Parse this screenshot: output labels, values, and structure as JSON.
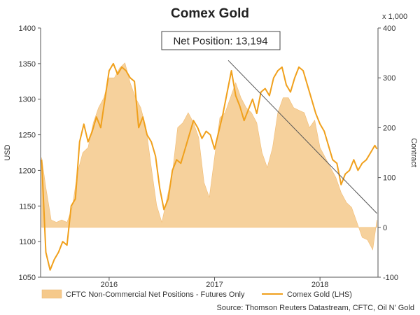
{
  "chart_data": {
    "type": "line",
    "title": "Comex Gold",
    "left_axis": {
      "label": "USD",
      "range": [
        1050,
        1400
      ],
      "ticks": [
        "1050",
        "1100",
        "1150",
        "1200",
        "1250",
        "1300",
        "1350",
        "1400"
      ]
    },
    "right_axis": {
      "label": "Contract",
      "unit_note": "x 1,000",
      "range": [
        -100,
        400
      ],
      "ticks": [
        "-100",
        "0",
        "100",
        "200",
        "300",
        "400"
      ]
    },
    "x_axis": {
      "range": [
        2015.35,
        2018.55
      ],
      "ticks": [
        {
          "label": "2016",
          "x": 2016.0
        },
        {
          "label": "2017",
          "x": 2017.0
        },
        {
          "label": "2018",
          "x": 2018.0
        }
      ]
    },
    "grid": false,
    "legend_position": "bottom",
    "annotation": {
      "text": "Net Position: 13,194",
      "line_from": [
        2017.13,
        335
      ],
      "line_to": [
        2018.54,
        28
      ]
    },
    "source": "Source: Thomson Reuters Datastream, CFTC, Oil N' Gold",
    "series": [
      {
        "name": "CFTC Non-Commercial Net Positions - Futures Only",
        "kind": "area",
        "axis": "right",
        "color": "#f5c98b",
        "x": [
          2015.36,
          2015.4,
          2015.45,
          2015.5,
          2015.55,
          2015.6,
          2015.65,
          2015.7,
          2015.75,
          2015.8,
          2015.85,
          2015.9,
          2015.95,
          2016.0,
          2016.05,
          2016.1,
          2016.15,
          2016.2,
          2016.25,
          2016.3,
          2016.35,
          2016.4,
          2016.45,
          2016.5,
          2016.55,
          2016.6,
          2016.65,
          2016.7,
          2016.75,
          2016.8,
          2016.85,
          2016.9,
          2016.95,
          2017.0,
          2017.05,
          2017.1,
          2017.15,
          2017.2,
          2017.25,
          2017.3,
          2017.35,
          2017.4,
          2017.45,
          2017.5,
          2017.55,
          2017.6,
          2017.65,
          2017.7,
          2017.75,
          2017.8,
          2017.85,
          2017.9,
          2017.95,
          2018.0,
          2018.05,
          2018.1,
          2018.15,
          2018.2,
          2018.25,
          2018.3,
          2018.35,
          2018.4,
          2018.45,
          2018.5,
          2018.54
        ],
        "values": [
          140,
          80,
          15,
          10,
          15,
          10,
          40,
          110,
          150,
          160,
          210,
          240,
          260,
          300,
          300,
          320,
          330,
          290,
          260,
          240,
          200,
          120,
          45,
          10,
          60,
          110,
          200,
          210,
          230,
          210,
          180,
          90,
          60,
          140,
          220,
          230,
          260,
          290,
          260,
          240,
          230,
          210,
          150,
          120,
          160,
          230,
          260,
          260,
          240,
          235,
          230,
          200,
          215,
          160,
          140,
          120,
          100,
          70,
          50,
          40,
          10,
          -20,
          -25,
          -45,
          15
        ],
        "values_unit": "thousand contracts"
      },
      {
        "name": "Comex Gold (LHS)",
        "kind": "line",
        "axis": "left",
        "color": "#f0a01c",
        "x": [
          2015.36,
          2015.4,
          2015.44,
          2015.48,
          2015.52,
          2015.56,
          2015.6,
          2015.64,
          2015.68,
          2015.72,
          2015.76,
          2015.8,
          2015.84,
          2015.88,
          2015.92,
          2015.96,
          2016.0,
          2016.04,
          2016.08,
          2016.12,
          2016.16,
          2016.2,
          2016.24,
          2016.28,
          2016.32,
          2016.36,
          2016.4,
          2016.44,
          2016.48,
          2016.52,
          2016.56,
          2016.6,
          2016.64,
          2016.68,
          2016.72,
          2016.76,
          2016.8,
          2016.84,
          2016.88,
          2016.92,
          2016.96,
          2017.0,
          2017.04,
          2017.08,
          2017.12,
          2017.16,
          2017.2,
          2017.24,
          2017.28,
          2017.32,
          2017.36,
          2017.4,
          2017.44,
          2017.48,
          2017.52,
          2017.56,
          2017.6,
          2017.64,
          2017.68,
          2017.72,
          2017.76,
          2017.8,
          2017.84,
          2017.88,
          2017.92,
          2017.96,
          2018.0,
          2018.04,
          2018.08,
          2018.12,
          2018.16,
          2018.2,
          2018.24,
          2018.28,
          2018.32,
          2018.36,
          2018.4,
          2018.44,
          2018.48,
          2018.52,
          2018.54
        ],
        "values": [
          1215,
          1085,
          1060,
          1075,
          1085,
          1100,
          1095,
          1150,
          1160,
          1240,
          1265,
          1240,
          1255,
          1275,
          1260,
          1300,
          1340,
          1350,
          1335,
          1345,
          1340,
          1330,
          1325,
          1260,
          1275,
          1250,
          1240,
          1220,
          1175,
          1145,
          1160,
          1200,
          1215,
          1210,
          1230,
          1250,
          1270,
          1260,
          1245,
          1255,
          1250,
          1230,
          1255,
          1280,
          1310,
          1340,
          1305,
          1290,
          1270,
          1285,
          1300,
          1280,
          1310,
          1315,
          1305,
          1330,
          1340,
          1345,
          1320,
          1310,
          1330,
          1345,
          1340,
          1320,
          1300,
          1280,
          1265,
          1255,
          1235,
          1215,
          1210,
          1180,
          1195,
          1200,
          1215,
          1200,
          1210,
          1215,
          1225,
          1235,
          1230
        ],
        "values_unit": "USD"
      }
    ]
  }
}
